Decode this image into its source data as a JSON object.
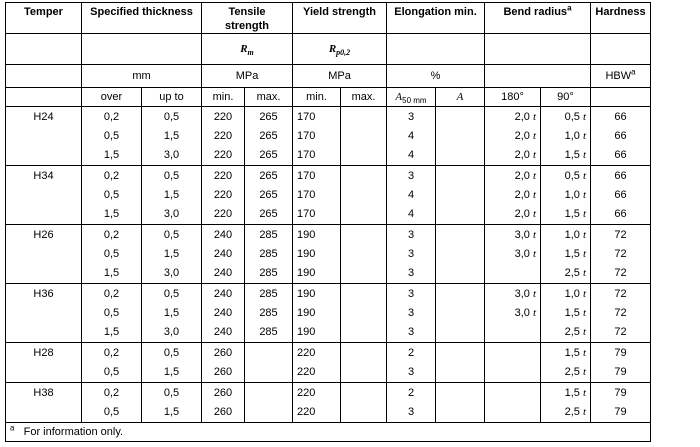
{
  "headers": {
    "temper": "Temper",
    "thickness": "Specified thickness",
    "tensile": "Tensile strength",
    "yield": "Yield strength",
    "elongation": "Elongation min.",
    "bend": "Bend radius",
    "bend_note": "a",
    "hardness": "Hardness",
    "rm": "R",
    "rm_sub": "m",
    "rp": "R",
    "rp_sub": "p0,2",
    "unit_mm": "mm",
    "unit_mpa1": "MPa",
    "unit_mpa2": "MPa",
    "unit_pct": "%",
    "unit_hbw": "HBW",
    "unit_hbw_note": "a",
    "over": "over",
    "upto": "up to",
    "ts_min": "min.",
    "ts_max": "max.",
    "ys_min": "min.",
    "ys_max": "max.",
    "a50": "A",
    "a50_sub": "50 mm",
    "a": "A",
    "deg180": "180°",
    "deg90": "90°"
  },
  "groups": [
    {
      "temper": "H24",
      "rows": [
        {
          "over": "0,2",
          "upto": "0,5",
          "ts_min": "220",
          "ts_max": "265",
          "ys_min": "170",
          "ys_max": "",
          "a50": "3",
          "a": "",
          "b180": "2,0",
          "b90": "0,5",
          "hb": "66"
        },
        {
          "over": "0,5",
          "upto": "1,5",
          "ts_min": "220",
          "ts_max": "265",
          "ys_min": "170",
          "ys_max": "",
          "a50": "4",
          "a": "",
          "b180": "2,0",
          "b90": "1,0",
          "hb": "66"
        },
        {
          "over": "1,5",
          "upto": "3,0",
          "ts_min": "220",
          "ts_max": "265",
          "ys_min": "170",
          "ys_max": "",
          "a50": "4",
          "a": "",
          "b180": "2,0",
          "b90": "1,5",
          "hb": "66"
        }
      ]
    },
    {
      "temper": "H34",
      "rows": [
        {
          "over": "0,2",
          "upto": "0,5",
          "ts_min": "220",
          "ts_max": "265",
          "ys_min": "170",
          "ys_max": "",
          "a50": "3",
          "a": "",
          "b180": "2,0",
          "b90": "0,5",
          "hb": "66"
        },
        {
          "over": "0,5",
          "upto": "1,5",
          "ts_min": "220",
          "ts_max": "265",
          "ys_min": "170",
          "ys_max": "",
          "a50": "4",
          "a": "",
          "b180": "2,0",
          "b90": "1,0",
          "hb": "66"
        },
        {
          "over": "1,5",
          "upto": "3,0",
          "ts_min": "220",
          "ts_max": "265",
          "ys_min": "170",
          "ys_max": "",
          "a50": "4",
          "a": "",
          "b180": "2,0",
          "b90": "1,5",
          "hb": "66"
        }
      ]
    },
    {
      "temper": "H26",
      "rows": [
        {
          "over": "0,2",
          "upto": "0,5",
          "ts_min": "240",
          "ts_max": "285",
          "ys_min": "190",
          "ys_max": "",
          "a50": "3",
          "a": "",
          "b180": "3,0",
          "b90": "1,0",
          "hb": "72"
        },
        {
          "over": "0,5",
          "upto": "1,5",
          "ts_min": "240",
          "ts_max": "285",
          "ys_min": "190",
          "ys_max": "",
          "a50": "3",
          "a": "",
          "b180": "3,0",
          "b90": "1,5",
          "hb": "72"
        },
        {
          "over": "1,5",
          "upto": "3,0",
          "ts_min": "240",
          "ts_max": "285",
          "ys_min": "190",
          "ys_max": "",
          "a50": "3",
          "a": "",
          "b180": "",
          "b90": "2,5",
          "hb": "72"
        }
      ]
    },
    {
      "temper": "H36",
      "rows": [
        {
          "over": "0,2",
          "upto": "0,5",
          "ts_min": "240",
          "ts_max": "285",
          "ys_min": "190",
          "ys_max": "",
          "a50": "3",
          "a": "",
          "b180": "3,0",
          "b90": "1,0",
          "hb": "72"
        },
        {
          "over": "0,5",
          "upto": "1,5",
          "ts_min": "240",
          "ts_max": "285",
          "ys_min": "190",
          "ys_max": "",
          "a50": "3",
          "a": "",
          "b180": "3,0",
          "b90": "1,5",
          "hb": "72"
        },
        {
          "over": "1,5",
          "upto": "3,0",
          "ts_min": "240",
          "ts_max": "285",
          "ys_min": "190",
          "ys_max": "",
          "a50": "3",
          "a": "",
          "b180": "",
          "b90": "2,5",
          "hb": "72"
        }
      ]
    },
    {
      "temper": "H28",
      "rows": [
        {
          "over": "0,2",
          "upto": "0,5",
          "ts_min": "260",
          "ts_max": "",
          "ys_min": "220",
          "ys_max": "",
          "a50": "2",
          "a": "",
          "b180": "",
          "b90": "1,5",
          "hb": "79"
        },
        {
          "over": "0,5",
          "upto": "1,5",
          "ts_min": "260",
          "ts_max": "",
          "ys_min": "220",
          "ys_max": "",
          "a50": "3",
          "a": "",
          "b180": "",
          "b90": "2,5",
          "hb": "79"
        }
      ]
    },
    {
      "temper": "H38",
      "rows": [
        {
          "over": "0,2",
          "upto": "0,5",
          "ts_min": "260",
          "ts_max": "",
          "ys_min": "220",
          "ys_max": "",
          "a50": "2",
          "a": "",
          "b180": "",
          "b90": "1,5",
          "hb": "79"
        },
        {
          "over": "0,5",
          "upto": "1,5",
          "ts_min": "260",
          "ts_max": "",
          "ys_min": "220",
          "ys_max": "",
          "a50": "3",
          "a": "",
          "b180": "",
          "b90": "2,5",
          "hb": "79"
        }
      ]
    }
  ],
  "t_symbol": "t",
  "footnote": {
    "mark": "a",
    "text": "For information only."
  }
}
